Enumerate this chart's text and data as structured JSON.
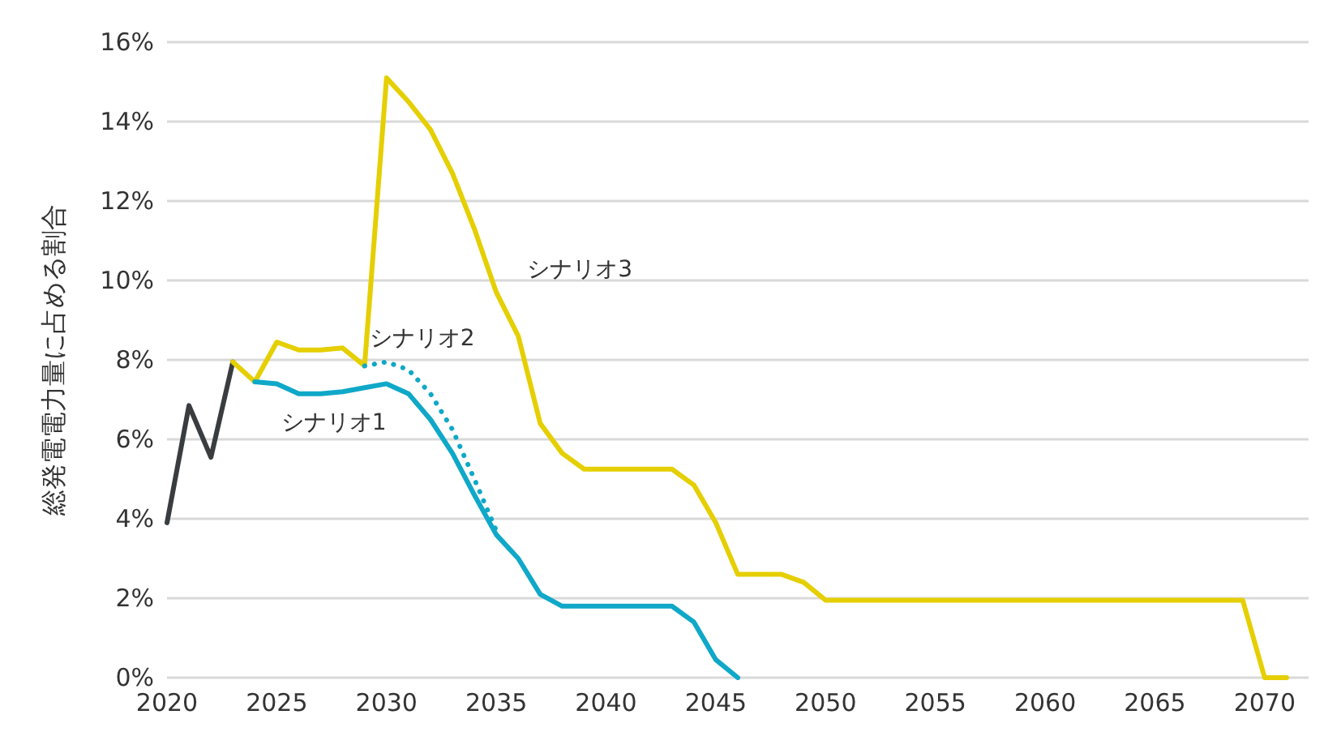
{
  "chart_data": {
    "type": "line",
    "ylabel": "総発電電力量に占める割合",
    "grid": "y",
    "legend": false,
    "marker": "none",
    "xlim": [
      2020,
      2072
    ],
    "xticks": [
      2020,
      2025,
      2030,
      2035,
      2040,
      2045,
      2050,
      2055,
      2060,
      2065,
      2070
    ],
    "ylim": [
      0,
      16
    ],
    "yticks": [
      {
        "value": 0,
        "label": "0%"
      },
      {
        "value": 2,
        "label": "2%"
      },
      {
        "value": 4,
        "label": "4%"
      },
      {
        "value": 6,
        "label": "6%"
      },
      {
        "value": 8,
        "label": "8%"
      },
      {
        "value": 10,
        "label": "10%"
      },
      {
        "value": 12,
        "label": "12%"
      },
      {
        "value": 14,
        "label": "14%"
      },
      {
        "value": 16,
        "label": "16%"
      }
    ],
    "series": [
      {
        "color": "#3a3d40",
        "line_style": "solid",
        "x": [
          2020,
          2021,
          2022,
          2023
        ],
        "values": [
          3.9,
          6.85,
          5.55,
          7.95
        ]
      },
      {
        "name": "シナリオ3",
        "color": "#e5cf00",
        "line_style": "solid",
        "x": [
          2023,
          2024,
          2025,
          2026,
          2027,
          2028,
          2029,
          2030,
          2031,
          2032,
          2033,
          2034,
          2035,
          2036,
          2037,
          2038,
          2039,
          2040,
          2041,
          2042,
          2043,
          2044,
          2045,
          2046,
          2047,
          2048,
          2049,
          2050,
          2055,
          2060,
          2065,
          2069,
          2070,
          2071
        ],
        "values": [
          7.95,
          7.45,
          8.45,
          8.25,
          8.25,
          8.3,
          7.85,
          15.1,
          14.5,
          13.8,
          12.7,
          11.3,
          9.7,
          8.6,
          6.4,
          5.65,
          5.25,
          5.25,
          5.25,
          5.25,
          5.25,
          4.85,
          3.9,
          2.6,
          2.6,
          2.6,
          2.4,
          1.95,
          1.95,
          1.95,
          1.95,
          1.95,
          0,
          0
        ]
      },
      {
        "name": "シナリオ2",
        "color": "#0fa8c8",
        "line_style": "dotted",
        "x": [
          2029,
          2030,
          2031,
          2032,
          2033,
          2034,
          2035
        ],
        "values": [
          7.85,
          7.95,
          7.75,
          7.15,
          6.25,
          5.0,
          3.7
        ]
      },
      {
        "name": "シナリオ1",
        "color": "#0fa8c8",
        "line_style": "solid",
        "x": [
          2024,
          2025,
          2026,
          2027,
          2028,
          2029,
          2030,
          2031,
          2032,
          2033,
          2034,
          2035,
          2036,
          2037,
          2038,
          2039,
          2040,
          2041,
          2042,
          2043,
          2044,
          2045,
          2046
        ],
        "values": [
          7.45,
          7.4,
          7.15,
          7.15,
          7.2,
          7.3,
          7.4,
          7.15,
          6.5,
          5.65,
          4.6,
          3.6,
          3.0,
          2.1,
          1.8,
          1.8,
          1.8,
          1.8,
          1.8,
          1.8,
          1.4,
          0.45,
          0
        ]
      }
    ]
  }
}
